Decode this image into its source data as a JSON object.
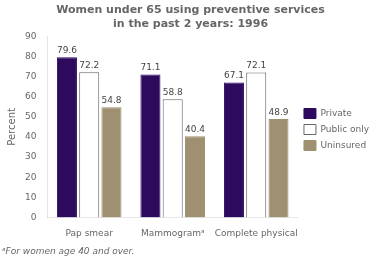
{
  "chart_data": {
    "type": "bar",
    "title": "Women under 65 using preventive services\nin the past 2 years: 1996",
    "categories": [
      "Pap smear",
      "Mammogramᵃ",
      "Complete physical"
    ],
    "series": [
      {
        "name": "Private",
        "color": "#2d0a5e",
        "values": [
          79.6,
          71.1,
          67.1
        ]
      },
      {
        "name": "Public only",
        "color": "#ffffff",
        "values": [
          72.2,
          58.8,
          72.1
        ]
      },
      {
        "name": "Uninsured",
        "color": "#9e9070",
        "values": [
          54.8,
          40.4,
          48.9
        ]
      }
    ],
    "ylabel": "Percent",
    "ylim": [
      0,
      90
    ],
    "yticks": [
      0,
      10,
      20,
      30,
      40,
      50,
      60,
      70,
      80,
      90
    ],
    "grid": false,
    "legend": "right",
    "data_labels": true,
    "annotations": [
      "ᵃFor women age 40 and over."
    ]
  }
}
